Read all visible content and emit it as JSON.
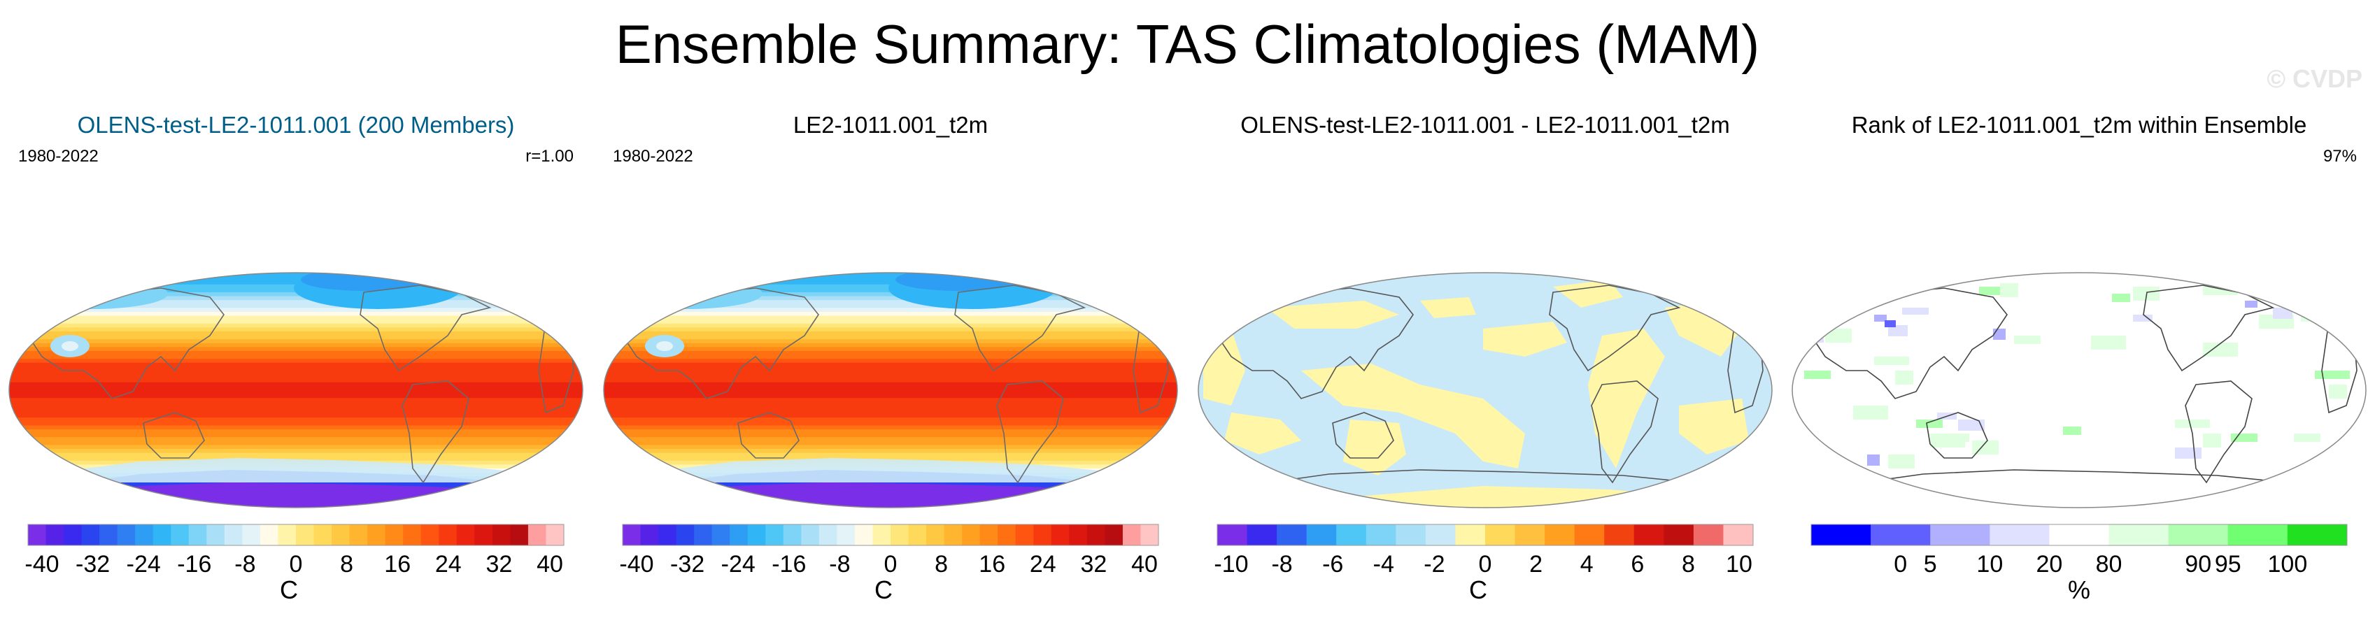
{
  "figure": {
    "title": "Ensemble Summary: TAS Climatologies (MAM)",
    "watermark": "© CVDP"
  },
  "colors": {
    "temp_levels": [
      "#7b2ee8",
      "#5622e8",
      "#3a2af0",
      "#2a45f0",
      "#2e62f0",
      "#2f7ff2",
      "#2e9ef5",
      "#30b6f6",
      "#4ec7f7",
      "#7dd4f7",
      "#a9e0f7",
      "#cdeaf8",
      "#e4f3f8",
      "#fffbe8",
      "#fff4a8",
      "#ffe67a",
      "#ffd95a",
      "#ffc843",
      "#ffb52f",
      "#ffa020",
      "#ff8a17",
      "#ff7012",
      "#ff5510",
      "#f73b0f",
      "#ec240f",
      "#dc170f",
      "#c8100f",
      "#b70d10",
      "#ff9e9e",
      "#ffc4c4"
    ],
    "diff_levels": [
      "#7b2ee8",
      "#3a2af0",
      "#2e62f0",
      "#2e9ef5",
      "#4ec7f7",
      "#7dd4f7",
      "#a9e0f7",
      "#c9e8f8",
      "#fff6a8",
      "#ffd95a",
      "#ffc040",
      "#ffa020",
      "#ff7a14",
      "#f24210",
      "#d81810",
      "#c00f0f",
      "#f06a6a",
      "#ffc0c0"
    ],
    "rank_levels": [
      "#0000ff",
      "#6060ff",
      "#b0b0ff",
      "#e0e0ff",
      "#ffffff",
      "#e0ffe0",
      "#b0ffb0",
      "#70ff70",
      "#20e020"
    ]
  },
  "panels": [
    {
      "id": "ensemble",
      "title": "OLENS-test-LE2-1011.001 (200 Members)",
      "title_color": "#005f8a",
      "period": "1980-2022",
      "stat": "r=1.00",
      "colorbar": {
        "ticks": [
          "-40",
          "-32",
          "-24",
          "-16",
          "-8",
          "0",
          "8",
          "16",
          "24",
          "32",
          "40"
        ],
        "unit": "C"
      }
    },
    {
      "id": "observed",
      "title": "LE2-1011.001_t2m",
      "title_color": "#000000",
      "period": "1980-2022",
      "stat": "",
      "colorbar": {
        "ticks": [
          "-40",
          "-32",
          "-24",
          "-16",
          "-8",
          "0",
          "8",
          "16",
          "24",
          "32",
          "40"
        ],
        "unit": "C"
      }
    },
    {
      "id": "difference",
      "title": "OLENS-test-LE2-1011.001 - LE2-1011.001_t2m",
      "title_color": "#000000",
      "period": "",
      "stat": "",
      "colorbar": {
        "ticks": [
          "-10",
          "-8",
          "-6",
          "-4",
          "-2",
          "0",
          "2",
          "4",
          "6",
          "8",
          "10"
        ],
        "unit": "C"
      }
    },
    {
      "id": "rank",
      "title": "Rank of LE2-1011.001_t2m within Ensemble",
      "title_color": "#000000",
      "period": "",
      "stat": "97%",
      "colorbar": {
        "ticks": [
          "0",
          "5",
          "10",
          "20",
          "80",
          "90",
          "95",
          "100"
        ],
        "unit": "%"
      }
    }
  ],
  "chart_data": [
    {
      "type": "heatmap",
      "projection": "robinson",
      "title": "OLENS-test-LE2-1011.001 (200 Members)",
      "variable": "TAS",
      "season": "MAM",
      "period": "1980-2022",
      "pattern_correlation": 1.0,
      "units": "C",
      "levels": [
        -40,
        -36,
        -32,
        -28,
        -24,
        -20,
        -16,
        -12,
        -8,
        -4,
        0,
        4,
        8,
        12,
        16,
        20,
        24,
        28,
        32,
        36,
        40
      ],
      "cbar_ticks": [
        -40,
        -32,
        -24,
        -16,
        -8,
        0,
        8,
        16,
        24,
        32,
        40
      ],
      "zonal_mean_approx": [
        {
          "lat": 80,
          "value": -18
        },
        {
          "lat": 60,
          "value": -4
        },
        {
          "lat": 40,
          "value": 10
        },
        {
          "lat": 20,
          "value": 24
        },
        {
          "lat": 0,
          "value": 27
        },
        {
          "lat": -20,
          "value": 24
        },
        {
          "lat": -40,
          "value": 13
        },
        {
          "lat": -60,
          "value": 0
        },
        {
          "lat": -80,
          "value": -40
        }
      ]
    },
    {
      "type": "heatmap",
      "projection": "robinson",
      "title": "LE2-1011.001_t2m",
      "variable": "TAS",
      "season": "MAM",
      "period": "1980-2022",
      "units": "C",
      "levels": [
        -40,
        -36,
        -32,
        -28,
        -24,
        -20,
        -16,
        -12,
        -8,
        -4,
        0,
        4,
        8,
        12,
        16,
        20,
        24,
        28,
        32,
        36,
        40
      ],
      "cbar_ticks": [
        -40,
        -32,
        -24,
        -16,
        -8,
        0,
        8,
        16,
        24,
        32,
        40
      ],
      "zonal_mean_approx": [
        {
          "lat": 80,
          "value": -18
        },
        {
          "lat": 60,
          "value": -4
        },
        {
          "lat": 40,
          "value": 10
        },
        {
          "lat": 20,
          "value": 24
        },
        {
          "lat": 0,
          "value": 27
        },
        {
          "lat": -20,
          "value": 24
        },
        {
          "lat": -40,
          "value": 13
        },
        {
          "lat": -60,
          "value": 0
        },
        {
          "lat": -80,
          "value": -40
        }
      ]
    },
    {
      "type": "heatmap",
      "projection": "robinson",
      "title": "OLENS-test-LE2-1011.001 - LE2-1011.001_t2m",
      "units": "C",
      "levels": [
        -10,
        -9,
        -8,
        -7,
        -6,
        -5,
        -4,
        -3,
        -2,
        -1,
        0,
        1,
        2,
        3,
        4,
        5,
        6,
        7,
        8,
        9,
        10
      ],
      "cbar_ticks": [
        -10,
        -8,
        -6,
        -4,
        -2,
        0,
        2,
        4,
        6,
        8,
        10
      ],
      "value_range_shown": [
        -1,
        1
      ],
      "note": "Differences near zero everywhere: light blue (-1..0) and light yellow (0..1) regions"
    },
    {
      "type": "heatmap",
      "projection": "robinson",
      "title": "Rank of LE2-1011.001_t2m within Ensemble",
      "units": "%",
      "levels": [
        0,
        5,
        10,
        20,
        80,
        90,
        95,
        100
      ],
      "cbar_ticks": [
        0,
        5,
        10,
        20,
        80,
        90,
        95,
        100
      ],
      "summary_stat": "97%",
      "note": "Mostly white (20-80%), scattered light green (80-95%) and light blue (5-20%) patches"
    }
  ]
}
